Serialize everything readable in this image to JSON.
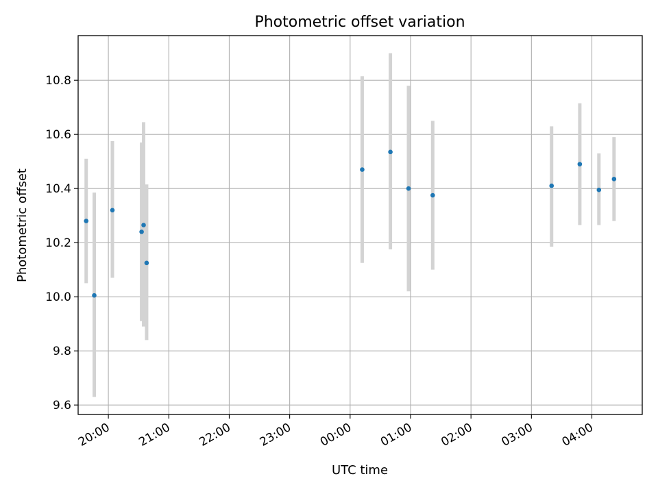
{
  "chart_data": {
    "type": "scatter",
    "title": "Photometric offset variation",
    "xlabel": "UTC time",
    "ylabel": "Photometric offset",
    "x_ticks": [
      "20:00",
      "21:00",
      "22:00",
      "23:00",
      "00:00",
      "01:00",
      "02:00",
      "03:00",
      "04:00"
    ],
    "y_ticks": [
      "9.6",
      "9.8",
      "10.0",
      "10.2",
      "10.4",
      "10.6",
      "10.8"
    ],
    "y_tick_values": [
      9.6,
      9.8,
      10.0,
      10.2,
      10.4,
      10.6,
      10.8
    ],
    "xlim": [
      "19:30",
      "04:50"
    ],
    "ylim": [
      9.565,
      10.965
    ],
    "grid": true,
    "marker_color": "#1f77b4",
    "errorbar_color": "#d3d3d3",
    "points": [
      {
        "x": "19:38",
        "y": 10.28,
        "ylow": 10.05,
        "yhigh": 10.51
      },
      {
        "x": "19:46",
        "y": 10.005,
        "ylow": 9.63,
        "yhigh": 10.385
      },
      {
        "x": "20:04",
        "y": 10.32,
        "ylow": 10.07,
        "yhigh": 10.575
      },
      {
        "x": "20:33",
        "y": 10.24,
        "ylow": 9.91,
        "yhigh": 10.57
      },
      {
        "x": "20:35",
        "y": 10.265,
        "ylow": 9.89,
        "yhigh": 10.645
      },
      {
        "x": "20:38",
        "y": 10.125,
        "ylow": 9.84,
        "yhigh": 10.415
      },
      {
        "x": "00:12",
        "y": 10.47,
        "ylow": 10.125,
        "yhigh": 10.815
      },
      {
        "x": "00:40",
        "y": 10.535,
        "ylow": 10.175,
        "yhigh": 10.9
      },
      {
        "x": "00:58",
        "y": 10.4,
        "ylow": 10.02,
        "yhigh": 10.78
      },
      {
        "x": "01:22",
        "y": 10.375,
        "ylow": 10.1,
        "yhigh": 10.65
      },
      {
        "x": "03:20",
        "y": 10.41,
        "ylow": 10.185,
        "yhigh": 10.63
      },
      {
        "x": "03:48",
        "y": 10.49,
        "ylow": 10.265,
        "yhigh": 10.715
      },
      {
        "x": "04:07",
        "y": 10.395,
        "ylow": 10.265,
        "yhigh": 10.53
      },
      {
        "x": "04:22",
        "y": 10.435,
        "ylow": 10.28,
        "yhigh": 10.59
      }
    ]
  }
}
